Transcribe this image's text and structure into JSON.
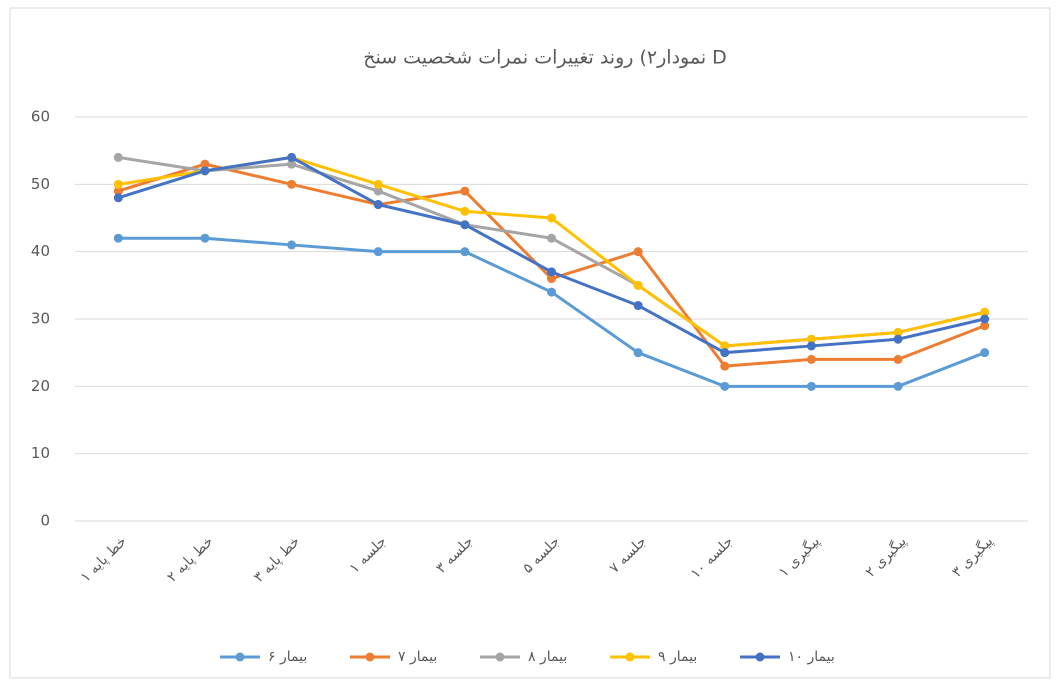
{
  "chart_data": {
    "type": "line",
    "title": "نمودار۲) روند تغییرات نمرات شخصیت سنخ D",
    "categories": [
      "خط پایه ۱",
      "خط پایه ۲",
      "خط پایه ۳",
      "جلسه ۱",
      "جلسه ۳",
      "جلسه ۵",
      "جلسه ۷",
      "جلسه ۱۰",
      "پیگیری ۱",
      "پیگیری ۲",
      "پیگیری ۳"
    ],
    "series": [
      {
        "name": "بیمار ۶",
        "color": "#5b9bd5",
        "values": [
          42,
          42,
          41,
          40,
          40,
          34,
          25,
          20,
          20,
          20,
          25
        ]
      },
      {
        "name": "بیمار ۷",
        "color": "#ed7d31",
        "values": [
          49,
          53,
          50,
          47,
          49,
          36,
          40,
          23,
          24,
          24,
          29
        ]
      },
      {
        "name": "بیمار ۸",
        "color": "#a5a5a5",
        "values": [
          54,
          52,
          53,
          49,
          44,
          42,
          35,
          26,
          27,
          28,
          31
        ]
      },
      {
        "name": "بیمار ۹",
        "color": "#ffc000",
        "values": [
          50,
          52,
          54,
          50,
          46,
          45,
          35,
          26,
          27,
          28,
          31
        ]
      },
      {
        "name": "بیمار ۱۰",
        "color": "#4472c4",
        "values": [
          48,
          52,
          54,
          47,
          44,
          37,
          32,
          25,
          26,
          27,
          30
        ]
      }
    ],
    "ylim": [
      0,
      60
    ],
    "yticks": [
      0,
      10,
      20,
      30,
      40,
      50,
      60
    ],
    "grid": true,
    "legend": "bottom"
  }
}
